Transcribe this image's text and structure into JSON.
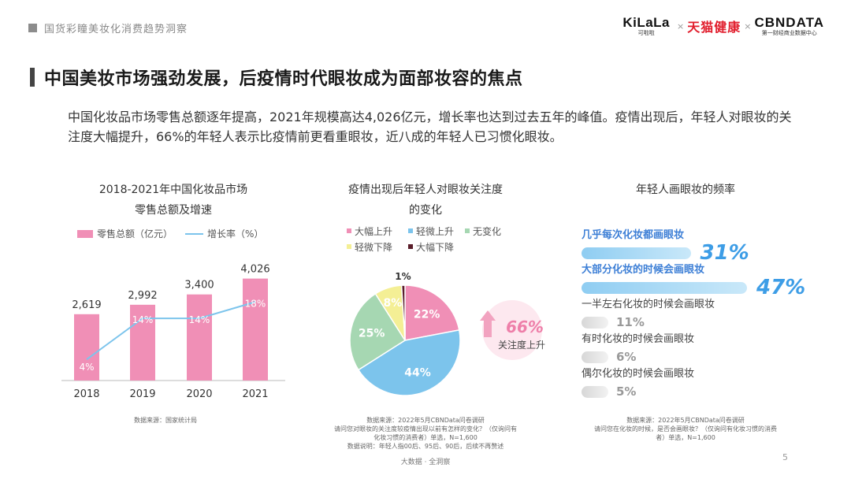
{
  "header": {
    "section_title": "国货彩瞳美妆化消费趋势洞察",
    "logos": {
      "kilala": "KiLaLa",
      "kilala_sub": "可啦啦",
      "tmall": "天猫健康",
      "cbn": "CBNDATA",
      "cbn_sub": "第一财经商业数据中心",
      "separator": "×"
    }
  },
  "page_title": "中国美妆市场强劲发展，后疫情时代眼妆成为面部妆容的焦点",
  "intro": "中国化妆品市场零售总额逐年提高，2021年规模高达4,026亿元，增长率也达到过去五年的峰值。疫情出现后，年轻人对眼妆的关注度大幅提升，66%的年轻人表示比疫情前更看重眼妆，近八成的年轻人已习惯化眼妆。",
  "colors": {
    "bar_pink": "#f08fb6",
    "line_blue": "#7cc4ec",
    "pie_pink": "#f08fb6",
    "pie_blue": "#7cc4ec",
    "pie_green": "#a6d7b2",
    "pie_yellow": "#f4ef95",
    "pie_dark": "#5a1d2a",
    "highlight_blue": "#3d9de6"
  },
  "chart_data": [
    {
      "type": "bar",
      "title_line1": "2018-2021年中国化妆品市场",
      "title_line2": "零售总额及增速",
      "legend": {
        "bar": "零售总额（亿元）",
        "line": "增长率（%）"
      },
      "categories": [
        "2018",
        "2019",
        "2020",
        "2021"
      ],
      "series": [
        {
          "name": "零售总额（亿元）",
          "values": [
            2619,
            2992,
            3400,
            4026
          ],
          "labels": [
            "2,619",
            "2,992",
            "3,400",
            "4,026"
          ]
        },
        {
          "name": "增长率（%）",
          "values": [
            4,
            14,
            14,
            18
          ],
          "labels": [
            "4%",
            "14%",
            "14%",
            "18%"
          ]
        }
      ],
      "source": "数据来源：国家统计局"
    },
    {
      "type": "pie",
      "title_line1": "疫情出现后年轻人对眼妆关注度",
      "title_line2": "的变化",
      "slices": [
        {
          "name": "大幅上升",
          "value": 22,
          "label": "22%"
        },
        {
          "name": "轻微上升",
          "value": 44,
          "label": "44%"
        },
        {
          "name": "无变化",
          "value": 25,
          "label": "25%"
        },
        {
          "name": "轻微下降",
          "value": 8,
          "label": "8%"
        },
        {
          "name": "大幅下降",
          "value": 1,
          "label": "1%"
        }
      ],
      "callout": {
        "value": "66%",
        "text": "关注度上升"
      },
      "source_lines": [
        "数据来源：2022年5月CBNData问卷调研",
        "请问您对眼妆的关注度较疫情出现以前有怎样的变化？（仅询问有",
        "化妆习惯的消费者）单选，N=1,600",
        "数据说明：年轻人指00后、95后、90后，后续不再赘述"
      ]
    },
    {
      "type": "bar",
      "title": "年轻人画眼妆的频率",
      "items": [
        {
          "label": "几乎每次化妆都画眼妆",
          "value": 31,
          "display": "31%",
          "highlight": true
        },
        {
          "label": "大部分化妆的时候会画眼妆",
          "value": 47,
          "display": "47%",
          "highlight": true
        },
        {
          "label": "一半左右化妆的时候会画眼妆",
          "value": 11,
          "display": "11%",
          "highlight": false
        },
        {
          "label": "有时化妆的时候会画眼妆",
          "value": 6,
          "display": "6%",
          "highlight": false
        },
        {
          "label": "偶尔化妆的时候会画眼妆",
          "value": 5,
          "display": "5%",
          "highlight": false
        }
      ],
      "source_lines": [
        "数据来源：2022年5月CBNData问卷调研",
        "请问您在化妆的时候，是否会画眼妆？（仅询问有化妆习惯的消费",
        "者）单选，N=1,600"
      ]
    }
  ],
  "footer": {
    "brand": "大数据 · 全洞察",
    "page_number": "5"
  }
}
